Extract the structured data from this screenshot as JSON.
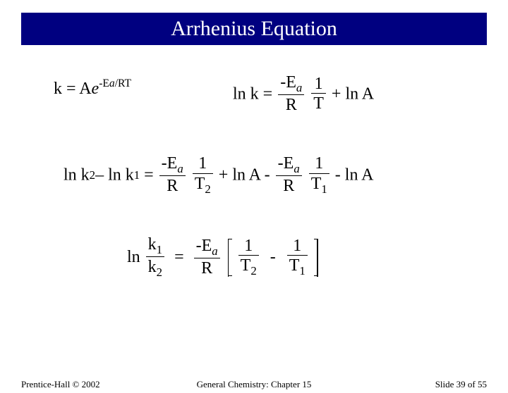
{
  "colors": {
    "title_bar_bg": "#000080",
    "title_bar_fg": "#ffffff",
    "page_bg": "#ffffff",
    "text": "#000000"
  },
  "typography": {
    "title_fontsize": 30,
    "body_fontsize": 24,
    "footer_fontsize": 13,
    "font_family": "Times New Roman"
  },
  "title": "Arrhenius Equation",
  "eq1": {
    "lhs_k": "k = A",
    "lhs_e": "e",
    "exp_neg": "-E",
    "exp_a": "a",
    "exp_rt": "/RT"
  },
  "eq2": {
    "lnk": "ln k =",
    "neg_e": "-E",
    "a": "a",
    "R": "R",
    "one": "1",
    "T": "T",
    "plus_lna": " + ln A"
  },
  "eq3": {
    "lhs_pre": "ln k",
    "sub2": "2",
    "mid": "– ln k",
    "sub1": "1",
    "eq": " =",
    "neg_e": "-E",
    "a": "a",
    "R": "R",
    "one": "1",
    "T2": "T",
    "T2sub": "2",
    "plus": " + ln A - ",
    "T1": "T",
    "T1sub": "1",
    "minus_lna": " - ln A"
  },
  "eq4": {
    "ln": "ln",
    "k1": "k",
    "k1sub": "1",
    "k2": "k",
    "k2sub": "2",
    "eq": "=",
    "neg_e": "-E",
    "a": "a",
    "R": "R",
    "one": "1",
    "T2": "T",
    "T2sub": "2",
    "minus": "-",
    "one2": "1",
    "T1": "T",
    "T1sub": "1"
  },
  "footer": {
    "left": "Prentice-Hall © 2002",
    "center": "General Chemistry: Chapter 15",
    "right": "Slide 39 of 55"
  }
}
